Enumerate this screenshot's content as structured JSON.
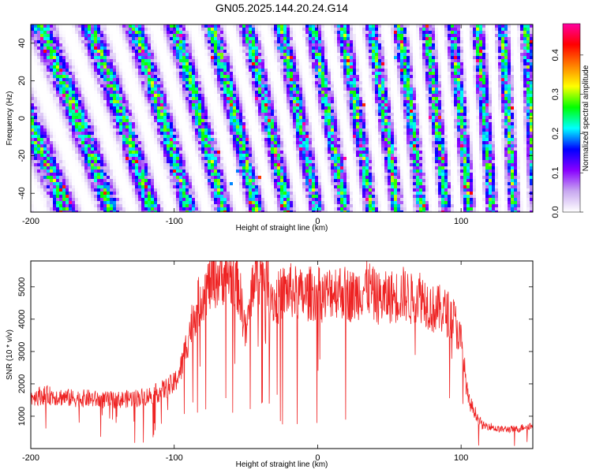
{
  "title": "GN05.2025.144.20.24.G14",
  "chart_data": [
    {
      "type": "heatmap",
      "xlabel": "Height of straight line (km)",
      "ylabel": "Frequency (Hz)",
      "xlim": [
        -200,
        150
      ],
      "ylim": [
        -50,
        50
      ],
      "xticks": [
        -200,
        -100,
        0,
        100
      ],
      "xtick_labels": [
        "-200",
        "-100",
        "0",
        "100"
      ],
      "yticks": [
        -40,
        -20,
        0,
        20,
        40
      ],
      "ytick_labels": [
        "-40",
        "-20",
        "0",
        "20",
        "40"
      ],
      "colorbar": {
        "label": "Normalized spectral amplitude",
        "range": [
          0.0,
          0.48
        ],
        "ticks": [
          0.0,
          0.1,
          0.2,
          0.3,
          0.4
        ],
        "tick_labels": [
          "0.0",
          "0.1",
          "0.2",
          "0.3",
          "0.4"
        ],
        "colormap": [
          "#ffffff",
          "#c8a8f0",
          "#8800ff",
          "#0000ff",
          "#00ffff",
          "#00ff00",
          "#ffff00",
          "#ff8000",
          "#ff0000",
          "#ff00a0"
        ]
      },
      "description_of_pattern": "diagonal striped pattern; fringes tilted, spacing decreasing from left to right",
      "grid": false
    },
    {
      "type": "line",
      "xlabel": "Height of straight line (km)",
      "ylabel": "SNR (10 * v/v)",
      "xlim": [
        -200,
        150
      ],
      "ylim": [
        0,
        5800
      ],
      "xticks": [
        -200,
        -100,
        0,
        100
      ],
      "xtick_labels": [
        "-200",
        "-100",
        "0",
        "100"
      ],
      "yticks": [
        1000,
        2000,
        3000,
        4000,
        5000
      ],
      "ytick_labels": [
        "1000",
        "2000",
        "3000",
        "4000",
        "5000"
      ],
      "color": "#ee2222",
      "x": [
        -200,
        -190,
        -180,
        -170,
        -160,
        -150,
        -140,
        -130,
        -120,
        -110,
        -100,
        -95,
        -90,
        -85,
        -80,
        -75,
        -70,
        -65,
        -60,
        -55,
        -50,
        -45,
        -40,
        -35,
        -30,
        -25,
        -20,
        -15,
        -10,
        -5,
        0,
        5,
        10,
        15,
        20,
        25,
        30,
        35,
        40,
        45,
        50,
        55,
        60,
        65,
        70,
        75,
        80,
        85,
        90,
        95,
        100,
        105,
        110,
        115,
        120,
        125,
        130,
        135,
        140,
        145,
        150
      ],
      "y": [
        1600,
        1650,
        1600,
        1550,
        1550,
        1500,
        1500,
        1550,
        1600,
        1750,
        2000,
        2500,
        3500,
        4300,
        4800,
        5100,
        5300,
        5400,
        5300,
        5000,
        3500,
        5200,
        5400,
        5300,
        4500,
        4800,
        4900,
        4800,
        4700,
        4800,
        4800,
        4700,
        4900,
        4900,
        4800,
        4700,
        4900,
        5000,
        4700,
        4600,
        4700,
        4700,
        4800,
        4600,
        4800,
        4600,
        4300,
        4300,
        4200,
        4000,
        3300,
        1500,
        1100,
        700,
        700,
        600,
        600,
        600,
        600,
        700,
        700
      ],
      "grid": false
    }
  ]
}
